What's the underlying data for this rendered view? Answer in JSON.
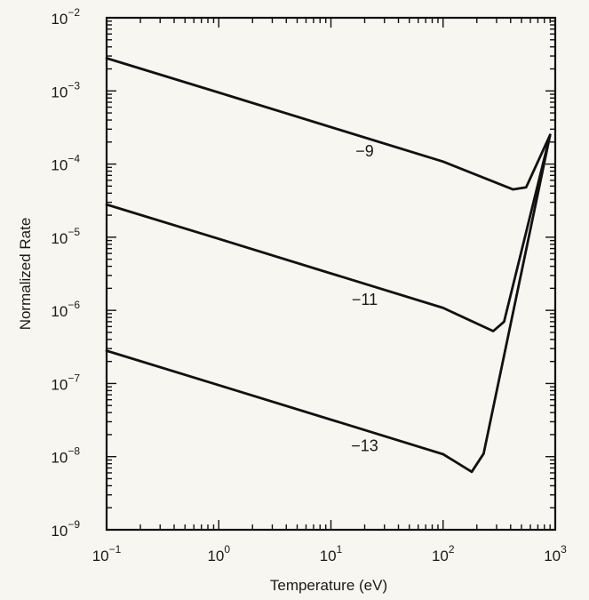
{
  "chart_data": {
    "type": "line",
    "title": "",
    "xlabel": "Temperature (eV)",
    "ylabel": "Normalized Rate",
    "x_scale": "log",
    "y_scale": "log",
    "xlim": [
      0.1,
      1000
    ],
    "ylim": [
      1e-09,
      0.01
    ],
    "grid": false,
    "x_ticks": [
      {
        "value": 0.1,
        "base": "10",
        "exp": "−1"
      },
      {
        "value": 1,
        "base": "10",
        "exp": "0"
      },
      {
        "value": 10,
        "base": "10",
        "exp": "1"
      },
      {
        "value": 100,
        "base": "10",
        "exp": "2"
      },
      {
        "value": 1000,
        "base": "10",
        "exp": "3"
      }
    ],
    "y_ticks": [
      {
        "value": 1e-09,
        "base": "10",
        "exp": "−9"
      },
      {
        "value": 1e-08,
        "base": "10",
        "exp": "−8"
      },
      {
        "value": 1e-07,
        "base": "10",
        "exp": "−7"
      },
      {
        "value": 1e-06,
        "base": "10",
        "exp": "−6"
      },
      {
        "value": 1e-05,
        "base": "10",
        "exp": "−5"
      },
      {
        "value": 0.0001,
        "base": "10",
        "exp": "−4"
      },
      {
        "value": 0.001,
        "base": "10",
        "exp": "−3"
      },
      {
        "value": 0.01,
        "base": "10",
        "exp": "−2"
      }
    ],
    "series": [
      {
        "label": "−9",
        "label_at": [
          20,
          0.00015
        ],
        "x": [
          0.1,
          1,
          10,
          100,
          420,
          550,
          900
        ],
        "y": [
          0.0028,
          0.00095,
          0.00032,
          0.000108,
          4.5e-05,
          4.8e-05,
          0.00025
        ]
      },
      {
        "label": "−11",
        "label_at": [
          20,
          1.4e-06
        ],
        "x": [
          0.1,
          1,
          10,
          100,
          280,
          350,
          900
        ],
        "y": [
          2.8e-05,
          9.5e-06,
          3.2e-06,
          1.08e-06,
          5.2e-07,
          7e-07,
          0.00025
        ]
      },
      {
        "label": "−13",
        "label_at": [
          20,
          1.4e-08
        ],
        "x": [
          0.1,
          1,
          10,
          100,
          180,
          230,
          900
        ],
        "y": [
          2.8e-07,
          9.5e-08,
          3.2e-08,
          1.08e-08,
          6.2e-09,
          1.1e-08,
          0.00025
        ]
      }
    ]
  }
}
